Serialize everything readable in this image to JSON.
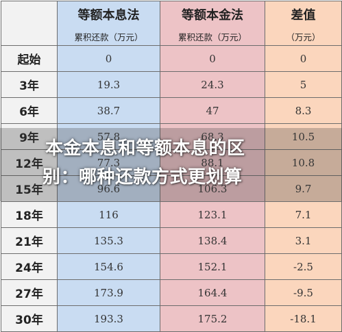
{
  "table": {
    "columns": [
      {
        "title": "等额本息法",
        "subtitle": "累积还款（万元）"
      },
      {
        "title": "等额本金法",
        "subtitle": "累积还款（万元）"
      },
      {
        "title": "差值",
        "subtitle": "（万元）"
      }
    ],
    "rows": [
      {
        "label": "起始",
        "values": [
          "0",
          "0",
          "0"
        ]
      },
      {
        "label": "3年",
        "values": [
          "19.3",
          "24.3",
          "5"
        ]
      },
      {
        "label": "6年",
        "values": [
          "38.7",
          "47",
          "8.3"
        ]
      },
      {
        "label": "9年",
        "values": [
          "57.8",
          "68.3",
          "10.5"
        ]
      },
      {
        "label": "12年",
        "values": [
          "77.3",
          "88.1",
          "10.8"
        ]
      },
      {
        "label": "15年",
        "values": [
          "96.6",
          "106.3",
          "9.7"
        ]
      },
      {
        "label": "18年",
        "values": [
          "116",
          "123.1",
          "7.1"
        ]
      },
      {
        "label": "21年",
        "values": [
          "135.3",
          "138.4",
          "3.1"
        ]
      },
      {
        "label": "24年",
        "values": [
          "154.6",
          "152.1",
          "-2.5"
        ]
      },
      {
        "label": "27年",
        "values": [
          "173.9",
          "164.4",
          "-9.5"
        ]
      },
      {
        "label": "30年",
        "values": [
          "193.3",
          "175.2",
          "-18.1"
        ]
      }
    ]
  },
  "overlay": {
    "line1": "本金本息和等额本息的区",
    "line2": "别：哪种还款方式更划算"
  },
  "colors": {
    "col_a": "#c9dcf2",
    "col_b": "#edc3c6",
    "col_c": "#fbd6bd",
    "label_col": "#f2f2f2"
  }
}
